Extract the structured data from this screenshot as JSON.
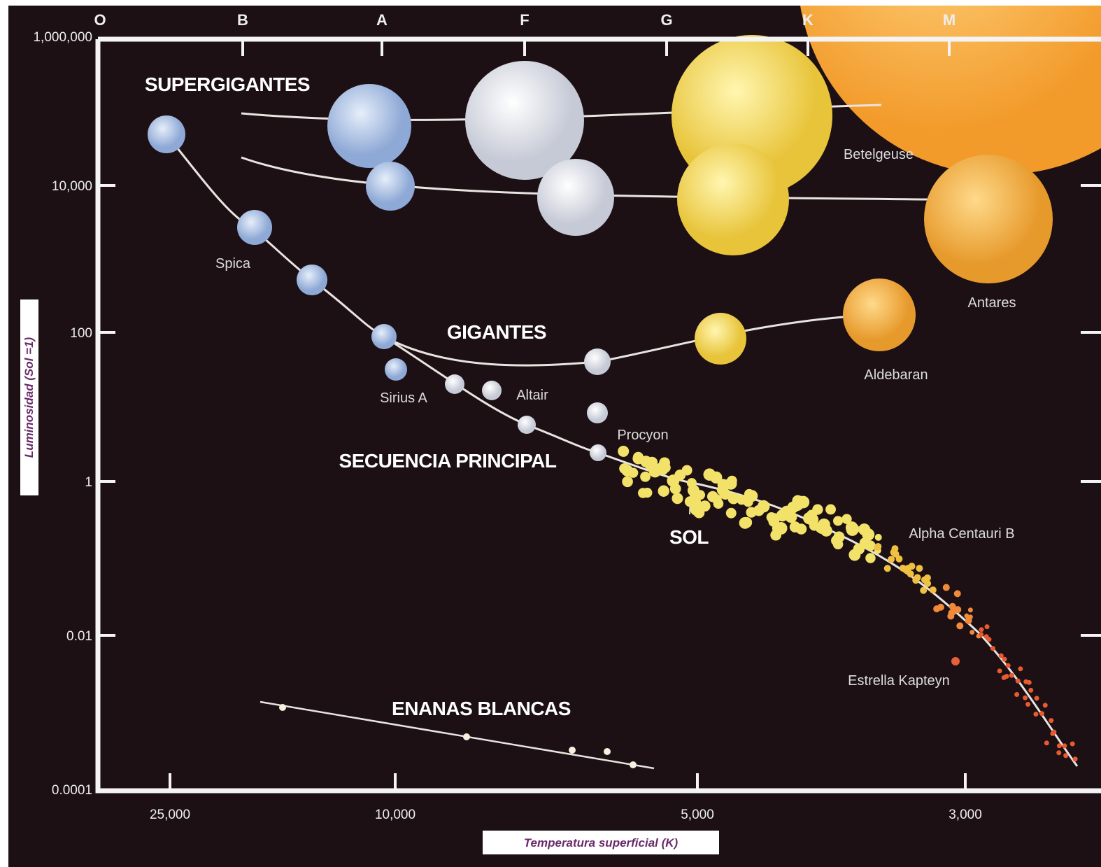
{
  "spectral_classes": [
    "O",
    "B",
    "A",
    "F",
    "G",
    "K",
    "M"
  ],
  "y_axis": {
    "title": "Luminosidad (Sol =1)",
    "ticks": [
      "1,000,000",
      "10,000",
      "100",
      "1",
      "0.01",
      "0.0001"
    ]
  },
  "x_axis": {
    "title": "Temperatura superficial (K)",
    "ticks": [
      "25,000",
      "10,000",
      "5,000",
      "3,000"
    ]
  },
  "regions": {
    "supergiants": "SUPERGIGANTES",
    "giants": "GIGANTES",
    "main_sequence": "SECUENCIA PRINCIPAL",
    "white_dwarfs": "ENANAS BLANCAS",
    "sun": "SOL"
  },
  "stars": [
    "Spica",
    "Sirius A",
    "Altair",
    "Procyon",
    "Betelgeuse",
    "Antares",
    "Aldebaran",
    "Alpha Centauri B",
    "Estrella Kapteyn"
  ]
}
